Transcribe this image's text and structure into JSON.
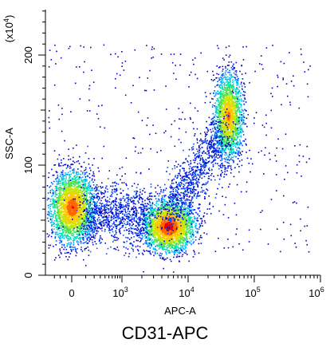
{
  "caption": "CD31-APC",
  "chart_data": {
    "type": "scatter",
    "subtype": "flow-cytometry-density-dot-plot",
    "xlabel": "APC-A",
    "ylabel": "SSC-A",
    "y_multiplier": "(x10",
    "y_multiplier_exp": "4",
    "y_multiplier_close": ")",
    "x_scale": "biexponential",
    "y_scale": "linear",
    "ylim": [
      0,
      250
    ],
    "y_ticks": [
      {
        "value": 0,
        "label": "0"
      },
      {
        "value": 100,
        "label": "100"
      },
      {
        "value": 200,
        "label": "200"
      }
    ],
    "x_ticks": [
      {
        "value": 0,
        "base": "0",
        "exp": ""
      },
      {
        "value": 1000,
        "base": "10",
        "exp": "3"
      },
      {
        "value": 10000,
        "base": "10",
        "exp": "4"
      },
      {
        "value": 100000,
        "base": "10",
        "exp": "5"
      },
      {
        "value": 1000000,
        "base": "10",
        "exp": "6"
      }
    ],
    "populations": [
      {
        "apc_center": 0,
        "ssc_center": 62,
        "relative_density": 0.9
      },
      {
        "apc_center": 5000,
        "ssc_center": 45,
        "relative_density": 1.0
      },
      {
        "apc_center": 40000,
        "ssc_center": 145,
        "relative_density": 0.8
      }
    ],
    "density_colors": [
      "#0000c8",
      "#0050ff",
      "#00b4ff",
      "#00e0b0",
      "#50e050",
      "#c8e600",
      "#ffc800",
      "#ff6400",
      "#e00000"
    ],
    "grid": false,
    "legend": "none"
  }
}
